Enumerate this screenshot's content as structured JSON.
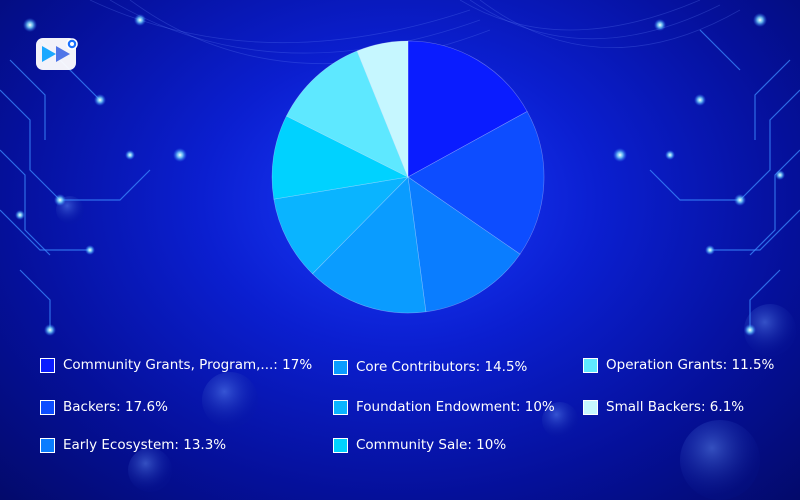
{
  "chart_data": {
    "type": "pie",
    "title": "",
    "start_angle_deg": 0,
    "direction": "clockwise",
    "slices": [
      {
        "label": "Community Grants, Program,...: 17%",
        "value": 17,
        "color": "#0a1cff"
      },
      {
        "label": "Backers: 17.6%",
        "value": 17.6,
        "color": "#0d4dff"
      },
      {
        "label": "Early Ecosystem: 13.3%",
        "value": 13.3,
        "color": "#0a7dff"
      },
      {
        "label": "Core Contributors: 14.5%",
        "value": 14.5,
        "color": "#0a9cff"
      },
      {
        "label": "Foundation Endowment: 10%",
        "value": 10,
        "color": "#0ab4ff"
      },
      {
        "label": "Community Sale: 10%",
        "value": 10,
        "color": "#00d2ff"
      },
      {
        "label": "Operation Grants: 11.5%",
        "value": 11.5,
        "color": "#5ee8ff"
      },
      {
        "label": "Small Backers: 6.1%",
        "value": 6.1,
        "color": "#c6f7ff"
      }
    ],
    "legend_position": "bottom"
  },
  "legend": {
    "items": [
      {
        "label": "Community Grants, Program,...: 17%",
        "color": "#0a1cff"
      },
      {
        "label": "Backers: 17.6%",
        "color": "#0d4dff"
      },
      {
        "label": "Early Ecosystem: 13.3%",
        "color": "#0a7dff"
      },
      {
        "label": "Core Contributors: 14.5%",
        "color": "#0a9cff"
      },
      {
        "label": "Foundation Endowment: 10%",
        "color": "#0ab4ff"
      },
      {
        "label": "Community Sale: 10%",
        "color": "#00d2ff"
      },
      {
        "label": "Operation Grants: 11.5%",
        "color": "#5ee8ff"
      },
      {
        "label": "Small Backers: 6.1%",
        "color": "#c6f7ff"
      }
    ]
  },
  "logo": {
    "icon": "brand-logo-icon"
  }
}
